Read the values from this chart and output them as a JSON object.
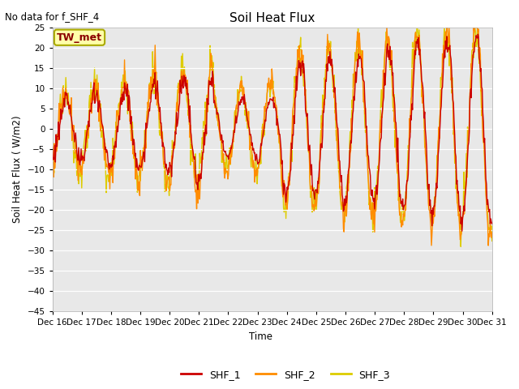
{
  "title": "Soil Heat Flux",
  "subtitle": "No data for f_SHF_4",
  "ylabel": "Soil Heat Flux ( W/m2)",
  "xlabel": "Time",
  "tw_met_label": "TW_met",
  "series_labels": [
    "SHF_1",
    "SHF_2",
    "SHF_3"
  ],
  "series_colors": [
    "#cc0000",
    "#ff8c00",
    "#ddcc00"
  ],
  "ylim": [
    -45,
    25
  ],
  "yticks": [
    -45,
    -40,
    -35,
    -30,
    -25,
    -20,
    -15,
    -10,
    -5,
    0,
    5,
    10,
    15,
    20,
    25
  ],
  "fig_bg_color": "#ffffff",
  "plot_bg_color": "#e8e8e8",
  "n_points": 720,
  "day_start": 16,
  "n_days": 15
}
